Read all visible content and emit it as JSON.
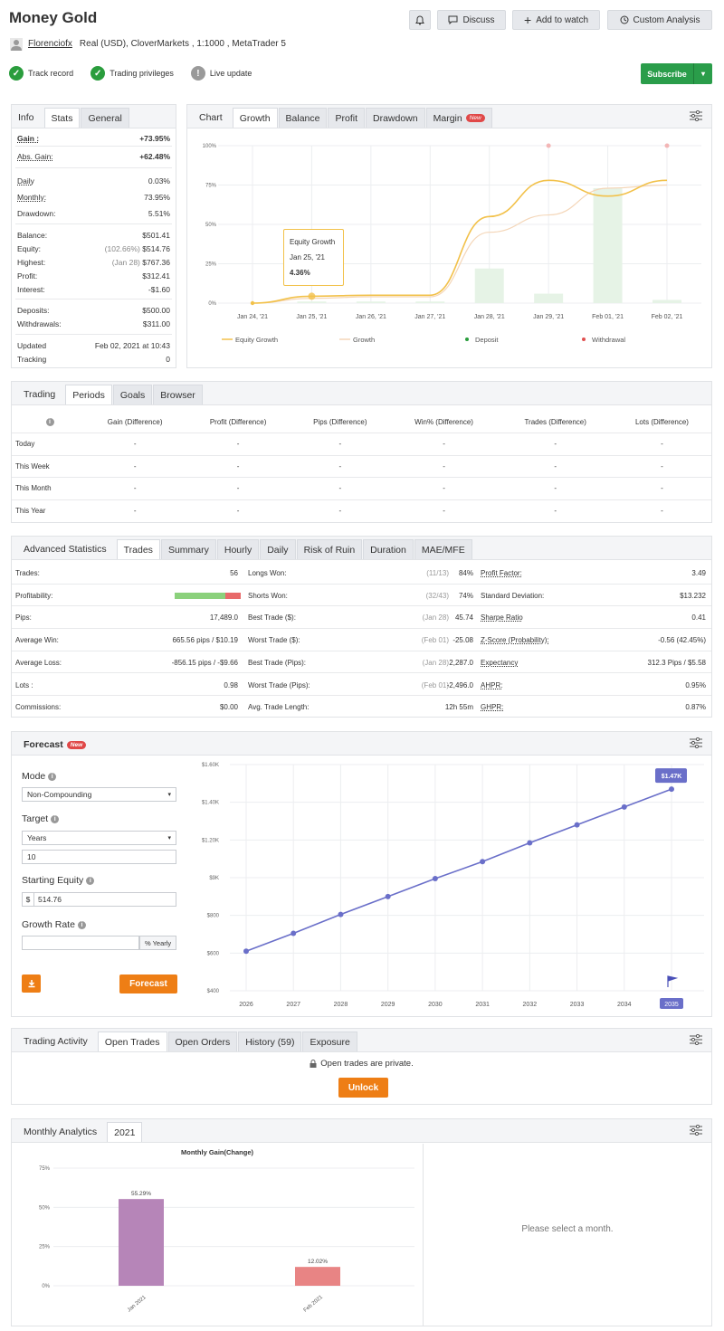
{
  "header": {
    "title": "Money Gold",
    "user": "Florenciofx",
    "account_desc": "Real (USD), CloverMarkets , 1:1000 , MetaTrader 5",
    "buttons": {
      "discuss": "Discuss",
      "watch": "Add to watch",
      "custom": "Custom Analysis",
      "subscribe": "Subscribe"
    },
    "badges": {
      "track": "Track record",
      "privileges": "Trading privileges",
      "live": "Live update"
    }
  },
  "info": {
    "tabs": [
      "Info",
      "Stats",
      "General"
    ],
    "gain_label": "Gain :",
    "gain": "+73.95%",
    "abs_gain_label": "Abs. Gain:",
    "abs_gain": "+62.48%",
    "daily_label": "Daily",
    "daily": "0.03%",
    "monthly_label": "Monthly:",
    "monthly": "73.95%",
    "drawdown_label": "Drawdown:",
    "drawdown": "5.51%",
    "balance_label": "Balance:",
    "balance": "$501.41",
    "equity_label": "Equity:",
    "equity_note": "(102.66%)",
    "equity": "$514.76",
    "highest_label": "Highest:",
    "highest_note": "(Jan 28)",
    "highest": "$767.36",
    "profit_label": "Profit:",
    "profit": "$312.41",
    "interest_label": "Interest:",
    "interest": "-$1.60",
    "deposits_label": "Deposits:",
    "deposits": "$500.00",
    "withdrawals_label": "Withdrawals:",
    "withdrawals": "$311.00",
    "updated_label": "Updated",
    "updated": "Feb 02, 2021 at 10:43",
    "tracking_label": "Tracking",
    "tracking": "0"
  },
  "chart": {
    "tabs": [
      "Chart",
      "Growth",
      "Balance",
      "Profit",
      "Drawdown",
      "Margin"
    ],
    "new_badge": "New",
    "tooltip": {
      "title": "Equity Growth",
      "date": "Jan 25, '21",
      "value": "4.36%"
    },
    "legend": [
      "Equity Growth",
      "Growth",
      "Deposit",
      "Withdrawal"
    ],
    "colors": {
      "equity": "#f2c14a",
      "growth": "#f4d6b8",
      "bars": "#e6f3e6",
      "withdrawal": "#f3b6b6"
    }
  },
  "chart_data": [
    {
      "type": "line",
      "title": "",
      "x": [
        "Jan 24, '21",
        "Jan 25, '21",
        "Jan 26, '21",
        "Jan 27, '21",
        "Jan 28, '21",
        "Jan 29, '21",
        "Feb 01, '21",
        "Feb 02, '21"
      ],
      "yticks": [
        "0%",
        "25%",
        "50%",
        "75%",
        "100%"
      ],
      "ylim": [
        0,
        100
      ],
      "series": [
        {
          "name": "Equity Growth",
          "values": [
            0,
            4.36,
            5,
            5,
            55,
            78,
            68,
            78
          ]
        },
        {
          "name": "Growth",
          "values": [
            0,
            3,
            4,
            4,
            45,
            56,
            73,
            75
          ]
        }
      ],
      "bars": [
        0,
        1,
        1,
        1,
        22,
        6,
        73,
        2
      ]
    },
    {
      "type": "line",
      "title": "",
      "x": [
        "2026",
        "2027",
        "2028",
        "2029",
        "2030",
        "2031",
        "2032",
        "2033",
        "2034",
        "2035"
      ],
      "yticks": [
        "$400",
        "$600",
        "$800",
        "$9K",
        "$1.20K",
        "$1.40K",
        "$1.60K"
      ],
      "values": [
        610,
        705,
        805,
        900,
        995,
        1085,
        1185,
        1280,
        1375,
        1470
      ],
      "end_label": "$1.47K",
      "ylim": [
        400,
        1600
      ]
    },
    {
      "type": "bar",
      "title": "Monthly Gain(Change)",
      "categories": [
        "Jan 2021",
        "Feb 2021"
      ],
      "values": [
        55.29,
        12.02
      ],
      "labels": [
        "55.29%",
        "12.02%"
      ],
      "yticks": [
        "0%",
        "25%",
        "50%",
        "75%"
      ],
      "ylim": [
        0,
        75
      ]
    }
  ],
  "periods": {
    "tabs": [
      "Trading",
      "Periods",
      "Goals",
      "Browser"
    ],
    "columns": [
      "Gain (Difference)",
      "Profit (Difference)",
      "Pips (Difference)",
      "Win% (Difference)",
      "Trades (Difference)",
      "Lots (Difference)"
    ],
    "rows": [
      {
        "name": "Today",
        "vals": [
          "-",
          "-",
          "-",
          "-",
          "-",
          "-"
        ]
      },
      {
        "name": "This Week",
        "vals": [
          "-",
          "-",
          "-",
          "-",
          "-",
          "-"
        ]
      },
      {
        "name": "This Month",
        "vals": [
          "-",
          "-",
          "-",
          "-",
          "-",
          "-"
        ]
      },
      {
        "name": "This Year",
        "vals": [
          "-",
          "-",
          "-",
          "-",
          "-",
          "-"
        ]
      }
    ]
  },
  "adv": {
    "tabs": [
      "Advanced Statistics",
      "Trades",
      "Summary",
      "Hourly",
      "Daily",
      "Risk of Ruin",
      "Duration",
      "MAE/MFE"
    ],
    "rows": [
      [
        "Trades:",
        "56",
        "Longs Won:",
        "(11/13)",
        "84%",
        "Profit Factor:",
        "3.49"
      ],
      [
        "Profitability:",
        "",
        "Shorts Won:",
        "(32/43)",
        "74%",
        "Standard Deviation:",
        "$13.232"
      ],
      [
        "Pips:",
        "17,489.0",
        "Best Trade ($):",
        "(Jan 28)",
        "45.74",
        "Sharpe Ratio",
        "0.41"
      ],
      [
        "Average Win:",
        "665.56 pips / $10.19",
        "Worst Trade ($):",
        "(Feb 01)",
        "-25.08",
        "Z-Score (Probability):",
        "-0.56 (42.45%)"
      ],
      [
        "Average Loss:",
        "-856.15 pips / -$9.66",
        "Best Trade (Pips):",
        "(Jan 28)",
        "2,287.0",
        "Expectancy",
        "312.3 Pips / $5.58"
      ],
      [
        "Lots :",
        "0.98",
        "Worst Trade (Pips):",
        "(Feb 01)",
        "-2,496.0",
        "AHPR:",
        "0.95%"
      ],
      [
        "Commissions:",
        "$0.00",
        "Avg. Trade Length:",
        "",
        "12h 55m",
        "GHPR:",
        "0.87%"
      ]
    ],
    "profitability": 0.77
  },
  "forecast": {
    "title": "Forecast",
    "new_badge": "New",
    "mode_label": "Mode",
    "mode": "Non-Compounding",
    "target_label": "Target",
    "target": "Years",
    "years": "10",
    "equity_label": "Starting Equity",
    "currency": "$",
    "equity": "514.76",
    "rate_label": "Growth Rate",
    "rate_suffix": "% Yearly",
    "rate_placeholder": "",
    "button": "Forecast"
  },
  "activity": {
    "tabs": [
      "Trading Activity",
      "Open Trades",
      "Open Orders",
      "History (59)",
      "Exposure"
    ],
    "message": "Open trades are private.",
    "button": "Unlock"
  },
  "monthly": {
    "tabs": [
      "Monthly Analytics",
      "2021"
    ],
    "select": "Please select a month."
  }
}
